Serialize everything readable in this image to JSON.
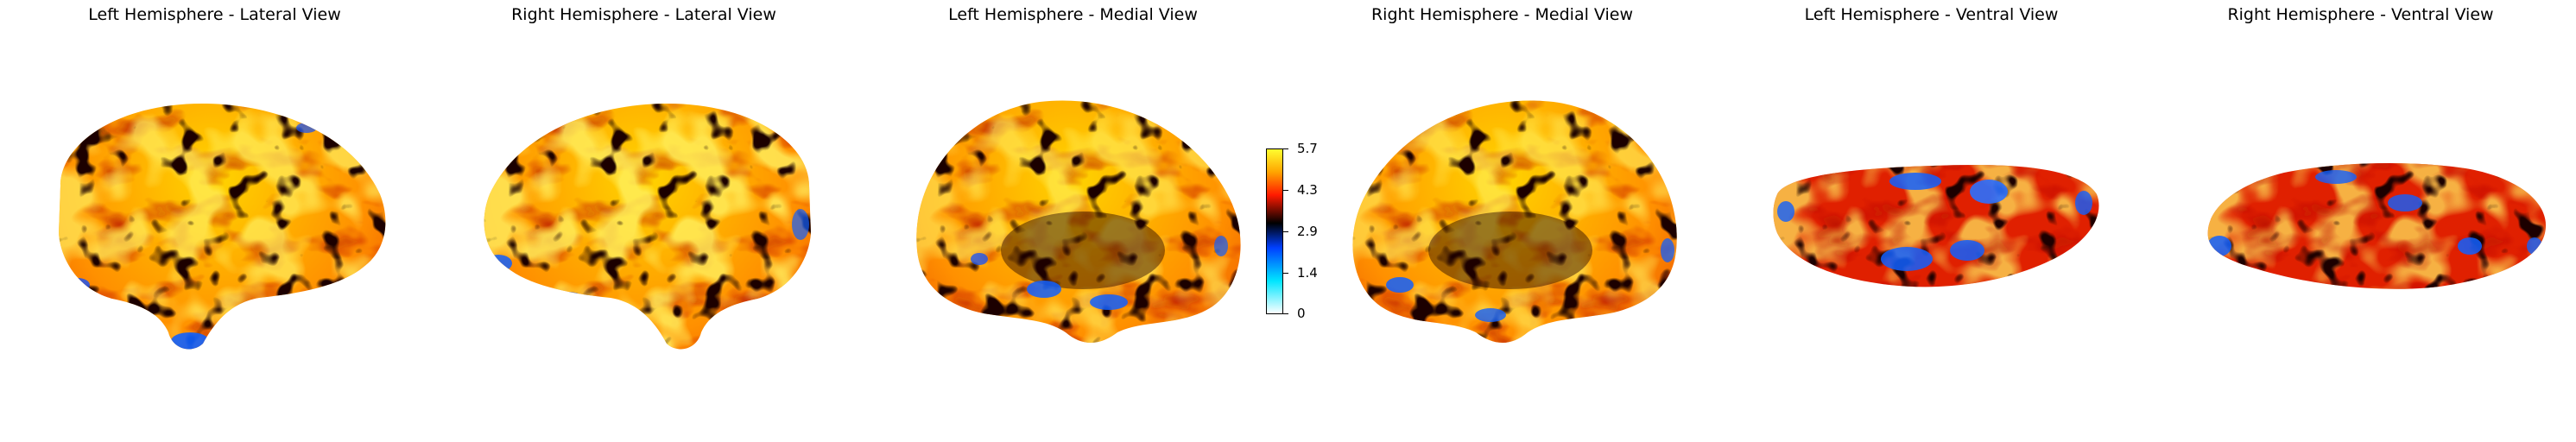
{
  "panels": [
    {
      "title": "Left Hemisphere - Lateral View"
    },
    {
      "title": "Right Hemisphere - Lateral View"
    },
    {
      "title": "Left Hemisphere - Medial View"
    },
    {
      "title": "Right Hemisphere - Medial View"
    },
    {
      "title": "Left Hemisphere - Ventral View"
    },
    {
      "title": "Right Hemisphere - Ventral View"
    }
  ],
  "colorbar": {
    "min": 0,
    "max": 5.7,
    "ticks": [
      "5.7",
      "4.3",
      "2.9",
      "1.4",
      "0"
    ],
    "colors": [
      "#ffffff",
      "#00e5ff",
      "#0040ff",
      "#000000",
      "#ff1a00",
      "#ffa500",
      "#ffff30"
    ]
  }
}
